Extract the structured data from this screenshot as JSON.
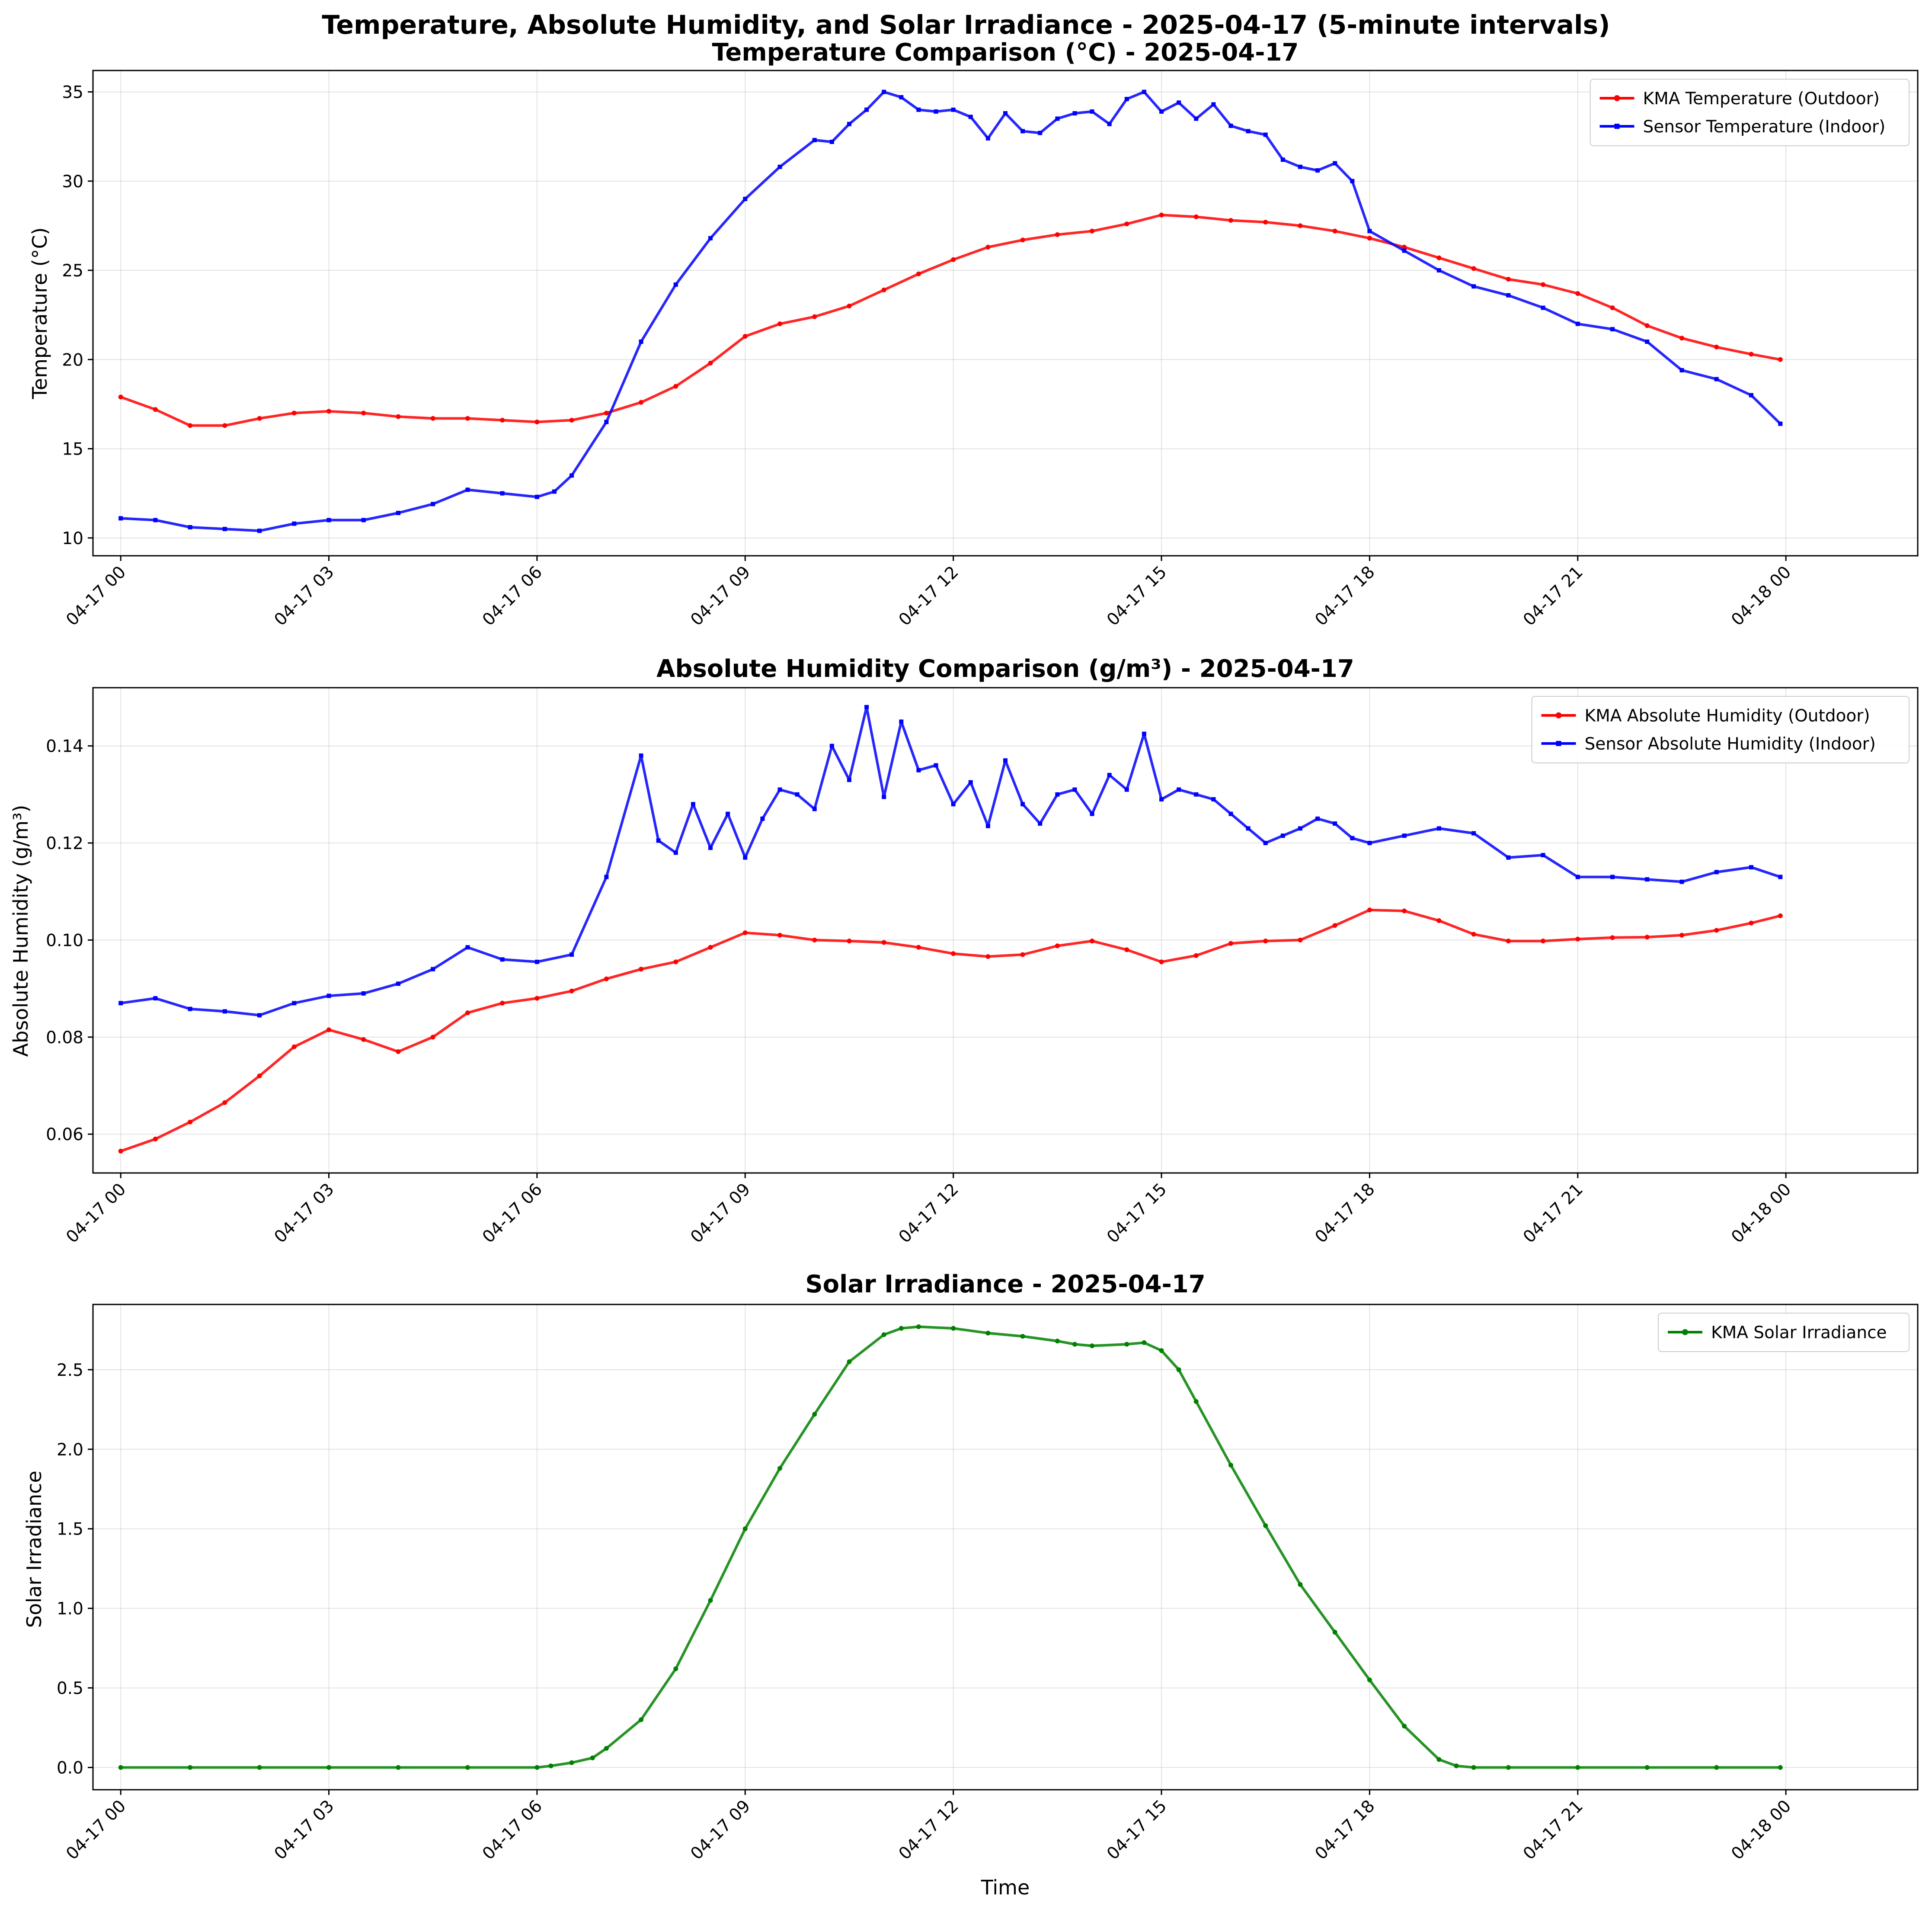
{
  "figure": {
    "title": "Temperature, Absolute Humidity, and Solar Irradiance - 2025-04-17 (5-minute intervals)"
  },
  "chart_data": [
    {
      "type": "line",
      "title": "Temperature Comparison (°C) - 2025-04-17",
      "xlabel": "",
      "ylabel": "Temperature (°C)",
      "x_unit": "hours since 2025-04-17 00:00",
      "xlim": [
        -0.4,
        25.9
      ],
      "ylim": [
        9.0,
        36.2
      ],
      "yticks": [
        10,
        15,
        20,
        25,
        30,
        35
      ],
      "ytick_labels": [
        "10",
        "15",
        "20",
        "25",
        "30",
        "35"
      ],
      "xticks": [
        0,
        3,
        6,
        9,
        12,
        15,
        18,
        21,
        24
      ],
      "xtick_labels": [
        "04-17 00",
        "04-17 03",
        "04-17 06",
        "04-17 09",
        "04-17 12",
        "04-17 15",
        "04-17 18",
        "04-17 21",
        "04-18 00"
      ],
      "grid": true,
      "legend": "upper right",
      "series": [
        {
          "name": "KMA Temperature (Outdoor)",
          "color": "#ff0000",
          "marker": "circle",
          "x": [
            0,
            0.5,
            1,
            1.5,
            2,
            2.5,
            3,
            3.5,
            4,
            4.5,
            5,
            5.5,
            6,
            6.5,
            7,
            7.5,
            8,
            8.5,
            9,
            9.5,
            10,
            10.5,
            11,
            11.5,
            12,
            12.5,
            13,
            13.5,
            14,
            14.5,
            15,
            15.5,
            16,
            16.5,
            17,
            17.5,
            18,
            18.5,
            19,
            19.5,
            20,
            20.5,
            21,
            21.5,
            22,
            22.5,
            23,
            23.5,
            23.92
          ],
          "y": [
            17.9,
            17.2,
            16.3,
            16.3,
            16.7,
            17.0,
            17.1,
            17.0,
            16.8,
            16.7,
            16.7,
            16.6,
            16.5,
            16.6,
            17.0,
            17.6,
            18.5,
            19.8,
            21.3,
            22.0,
            22.4,
            23.0,
            23.9,
            24.8,
            25.6,
            26.3,
            26.7,
            27.0,
            27.2,
            27.6,
            28.1,
            28.0,
            27.8,
            27.7,
            27.5,
            27.2,
            26.8,
            26.3,
            25.7,
            25.1,
            24.5,
            24.2,
            23.7,
            22.9,
            21.9,
            21.2,
            20.7,
            20.3,
            20.0
          ]
        },
        {
          "name": "Sensor Temperature (Indoor)",
          "color": "#0000ff",
          "marker": "square",
          "x": [
            0,
            0.5,
            1,
            1.5,
            2,
            2.5,
            3,
            3.5,
            4,
            4.5,
            5,
            5.5,
            6,
            6.25,
            6.5,
            7,
            7.5,
            8,
            8.5,
            9,
            9.5,
            10,
            10.25,
            10.5,
            10.75,
            11,
            11.25,
            11.5,
            11.75,
            12,
            12.25,
            12.5,
            12.75,
            13,
            13.25,
            13.5,
            13.75,
            14,
            14.25,
            14.5,
            14.75,
            15,
            15.25,
            15.5,
            15.75,
            16,
            16.25,
            16.5,
            16.75,
            17,
            17.25,
            17.5,
            17.75,
            18,
            18.5,
            19,
            19.5,
            20,
            20.5,
            21,
            21.5,
            22,
            22.5,
            23,
            23.5,
            23.92
          ],
          "y": [
            11.1,
            11.0,
            10.6,
            10.5,
            10.4,
            10.8,
            11.0,
            11.0,
            11.4,
            11.9,
            12.7,
            12.5,
            12.3,
            12.6,
            13.5,
            16.5,
            21.0,
            24.2,
            26.8,
            29.0,
            30.8,
            32.3,
            32.2,
            33.2,
            34.0,
            35.0,
            34.7,
            34.0,
            33.9,
            34.0,
            33.6,
            32.4,
            33.8,
            32.8,
            32.7,
            33.5,
            33.8,
            33.9,
            33.2,
            34.6,
            35.0,
            33.9,
            34.4,
            33.5,
            34.3,
            33.1,
            32.8,
            32.6,
            31.2,
            30.8,
            30.6,
            31.0,
            30.0,
            27.2,
            26.1,
            25.0,
            24.1,
            23.6,
            22.9,
            22.0,
            21.7,
            21.0,
            19.4,
            18.9,
            18.0,
            16.4
          ]
        }
      ]
    },
    {
      "type": "line",
      "title": "Absolute Humidity Comparison (g/m³) - 2025-04-17",
      "xlabel": "",
      "ylabel": "Absolute Humidity (g/m³)",
      "x_unit": "hours since 2025-04-17 00:00",
      "xlim": [
        -0.4,
        25.9
      ],
      "ylim": [
        0.052,
        0.152
      ],
      "yticks": [
        0.06,
        0.08,
        0.1,
        0.12,
        0.14
      ],
      "ytick_labels": [
        "0.06",
        "0.08",
        "0.10",
        "0.12",
        "0.14"
      ],
      "xticks": [
        0,
        3,
        6,
        9,
        12,
        15,
        18,
        21,
        24
      ],
      "xtick_labels": [
        "04-17 00",
        "04-17 03",
        "04-17 06",
        "04-17 09",
        "04-17 12",
        "04-17 15",
        "04-17 18",
        "04-17 21",
        "04-18 00"
      ],
      "grid": true,
      "legend": "upper right",
      "series": [
        {
          "name": "KMA Absolute Humidity (Outdoor)",
          "color": "#ff0000",
          "marker": "circle",
          "x": [
            0,
            0.5,
            1,
            1.5,
            2,
            2.5,
            3,
            3.5,
            4,
            4.5,
            5,
            5.5,
            6,
            6.5,
            7,
            7.5,
            8,
            8.5,
            9,
            9.5,
            10,
            10.5,
            11,
            11.5,
            12,
            12.5,
            13,
            13.5,
            14,
            14.5,
            15,
            15.5,
            16,
            16.5,
            17,
            17.5,
            18,
            18.5,
            19,
            19.5,
            20,
            20.5,
            21,
            21.5,
            22,
            22.5,
            23,
            23.5,
            23.92
          ],
          "y": [
            0.0565,
            0.059,
            0.0625,
            0.0665,
            0.072,
            0.078,
            0.0815,
            0.0795,
            0.077,
            0.08,
            0.085,
            0.087,
            0.088,
            0.0895,
            0.092,
            0.094,
            0.0955,
            0.0985,
            0.1015,
            0.101,
            0.1,
            0.0998,
            0.0995,
            0.0985,
            0.0972,
            0.0966,
            0.097,
            0.0988,
            0.0998,
            0.098,
            0.0955,
            0.0968,
            0.0993,
            0.0998,
            0.1,
            0.103,
            0.1062,
            0.106,
            0.104,
            0.1012,
            0.0998,
            0.0998,
            0.1002,
            0.1005,
            0.1006,
            0.101,
            0.102,
            0.1035,
            0.105
          ]
        },
        {
          "name": "Sensor Absolute Humidity (Indoor)",
          "color": "#0000ff",
          "marker": "square",
          "x": [
            0,
            0.5,
            1,
            1.5,
            2,
            2.5,
            3,
            3.5,
            4,
            4.5,
            5,
            5.5,
            6,
            6.5,
            7,
            7.5,
            7.75,
            8,
            8.25,
            8.5,
            8.75,
            9,
            9.25,
            9.5,
            9.75,
            10,
            10.25,
            10.5,
            10.75,
            11,
            11.25,
            11.5,
            11.75,
            12,
            12.25,
            12.5,
            12.75,
            13,
            13.25,
            13.5,
            13.75,
            14,
            14.25,
            14.5,
            14.75,
            15,
            15.25,
            15.5,
            15.75,
            16,
            16.25,
            16.5,
            16.75,
            17,
            17.25,
            17.5,
            17.75,
            18,
            18.5,
            19,
            19.5,
            20,
            20.5,
            21,
            21.5,
            22,
            22.5,
            23,
            23.5,
            23.92
          ],
          "y": [
            0.087,
            0.088,
            0.0858,
            0.0853,
            0.0845,
            0.087,
            0.0885,
            0.089,
            0.091,
            0.094,
            0.0985,
            0.096,
            0.0955,
            0.097,
            0.113,
            0.138,
            0.1205,
            0.118,
            0.128,
            0.119,
            0.126,
            0.117,
            0.125,
            0.131,
            0.13,
            0.127,
            0.14,
            0.133,
            0.148,
            0.1295,
            0.145,
            0.135,
            0.136,
            0.128,
            0.1325,
            0.1235,
            0.137,
            0.128,
            0.124,
            0.13,
            0.131,
            0.126,
            0.134,
            0.131,
            0.1425,
            0.129,
            0.131,
            0.13,
            0.129,
            0.126,
            0.123,
            0.12,
            0.1215,
            0.123,
            0.125,
            0.124,
            0.121,
            0.12,
            0.1215,
            0.123,
            0.122,
            0.117,
            0.1175,
            0.113,
            0.113,
            0.1125,
            0.112,
            0.114,
            0.115,
            0.113
          ]
        }
      ]
    },
    {
      "type": "line",
      "title": "Solar Irradiance - 2025-04-17",
      "xlabel": "Time",
      "ylabel": "Solar Irradiance",
      "x_unit": "hours since 2025-04-17 00:00",
      "xlim": [
        -0.4,
        25.9
      ],
      "ylim": [
        -0.14,
        2.91
      ],
      "yticks": [
        0.0,
        0.5,
        1.0,
        1.5,
        2.0,
        2.5
      ],
      "ytick_labels": [
        "0.0",
        "0.5",
        "1.0",
        "1.5",
        "2.0",
        "2.5"
      ],
      "xticks": [
        0,
        3,
        6,
        9,
        12,
        15,
        18,
        21,
        24
      ],
      "xtick_labels": [
        "04-17 00",
        "04-17 03",
        "04-17 06",
        "04-17 09",
        "04-17 12",
        "04-17 15",
        "04-17 18",
        "04-17 21",
        "04-18 00"
      ],
      "grid": true,
      "legend": "upper right",
      "series": [
        {
          "name": "KMA Solar Irradiance",
          "color": "#008000",
          "marker": "circle",
          "x": [
            0,
            1,
            2,
            3,
            4,
            5,
            6,
            6.2,
            6.5,
            6.8,
            7,
            7.5,
            8,
            8.5,
            9,
            9.5,
            10,
            10.5,
            11,
            11.25,
            11.5,
            12,
            12.5,
            13,
            13.5,
            13.75,
            14,
            14.5,
            14.75,
            15,
            15.25,
            15.5,
            16,
            16.5,
            17,
            17.5,
            18,
            18.5,
            19,
            19.25,
            19.5,
            20,
            21,
            22,
            23,
            23.92
          ],
          "y": [
            0,
            0,
            0,
            0,
            0,
            0,
            0,
            0.01,
            0.03,
            0.06,
            0.12,
            0.3,
            0.62,
            1.05,
            1.5,
            1.88,
            2.22,
            2.55,
            2.72,
            2.76,
            2.77,
            2.76,
            2.73,
            2.71,
            2.68,
            2.66,
            2.65,
            2.66,
            2.67,
            2.62,
            2.5,
            2.3,
            1.9,
            1.52,
            1.15,
            0.85,
            0.55,
            0.26,
            0.05,
            0.01,
            0,
            0,
            0,
            0,
            0,
            0
          ]
        }
      ]
    }
  ]
}
